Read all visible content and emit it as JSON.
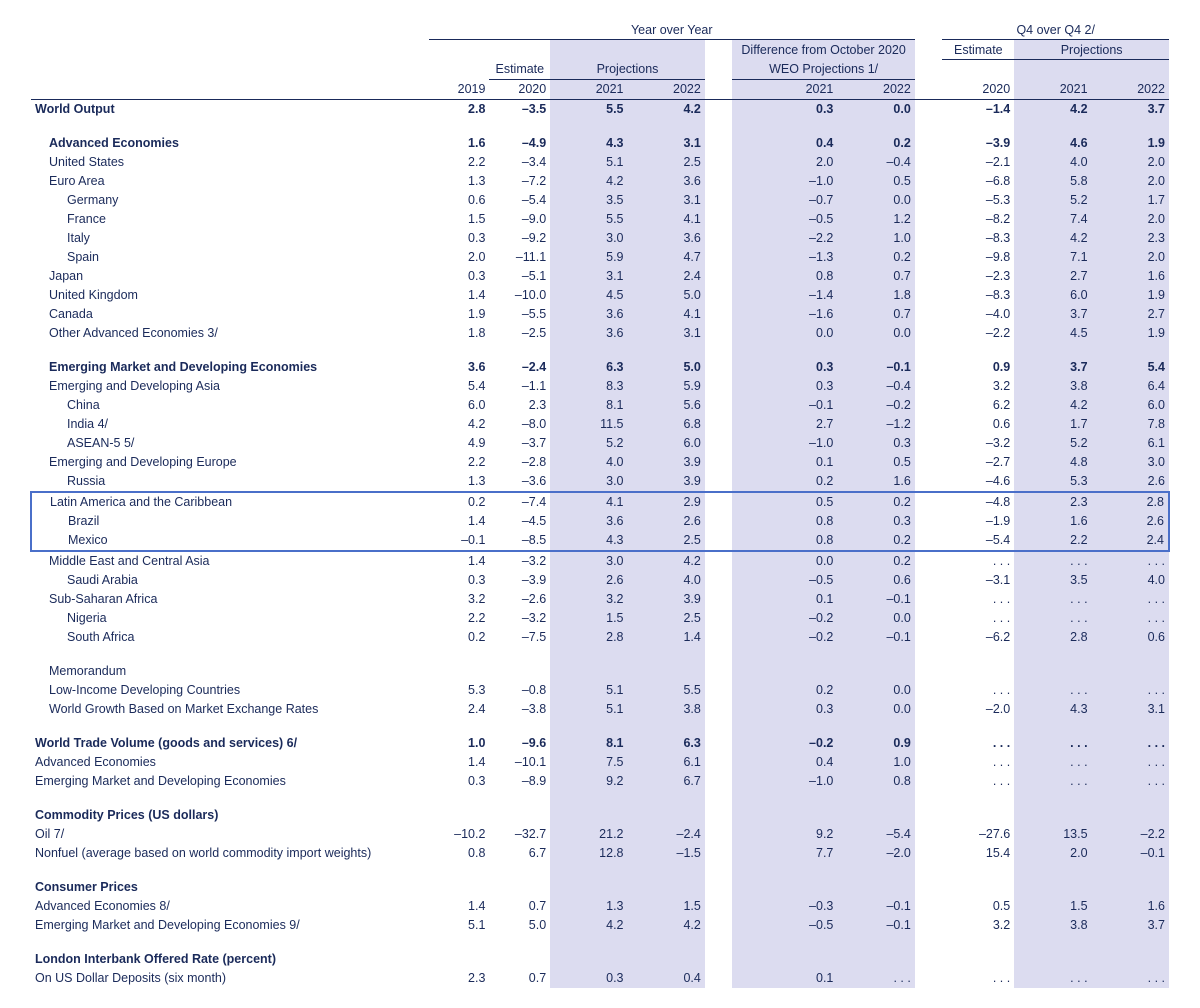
{
  "style": {
    "text_color": "#1a2a5a",
    "shade_color": "#dcdcf0",
    "highlight_border": "#4a6fc9",
    "font_family": "Arial",
    "font_size_pt": 9
  },
  "headers": {
    "yoy": "Year over Year",
    "diff": "Difference from October 2020",
    "diff2": "WEO Projections 1/",
    "q4": "Q4 over Q4 2/",
    "estimate": "Estimate",
    "projections": "Projections",
    "y2019": "2019",
    "y2020": "2020",
    "y2021": "2021",
    "y2022": "2022"
  },
  "rows": [
    {
      "label": "World Output",
      "bold": true,
      "i": 0,
      "v": [
        "2.8",
        "–3.5",
        "5.5",
        "4.2",
        "0.3",
        "0.0",
        "–1.4",
        "4.2",
        "3.7"
      ]
    },
    {
      "spacer": true
    },
    {
      "label": "Advanced Economies",
      "bold": true,
      "i": 1,
      "v": [
        "1.6",
        "–4.9",
        "4.3",
        "3.1",
        "0.4",
        "0.2",
        "–3.9",
        "4.6",
        "1.9"
      ]
    },
    {
      "label": "United States",
      "i": 1,
      "v": [
        "2.2",
        "–3.4",
        "5.1",
        "2.5",
        "2.0",
        "–0.4",
        "–2.1",
        "4.0",
        "2.0"
      ]
    },
    {
      "label": "Euro Area",
      "i": 1,
      "v": [
        "1.3",
        "–7.2",
        "4.2",
        "3.6",
        "–1.0",
        "0.5",
        "–6.8",
        "5.8",
        "2.0"
      ]
    },
    {
      "label": "Germany",
      "i": 2,
      "v": [
        "0.6",
        "–5.4",
        "3.5",
        "3.1",
        "–0.7",
        "0.0",
        "–5.3",
        "5.2",
        "1.7"
      ]
    },
    {
      "label": "France",
      "i": 2,
      "v": [
        "1.5",
        "–9.0",
        "5.5",
        "4.1",
        "–0.5",
        "1.2",
        "–8.2",
        "7.4",
        "2.0"
      ]
    },
    {
      "label": "Italy",
      "i": 2,
      "v": [
        "0.3",
        "–9.2",
        "3.0",
        "3.6",
        "–2.2",
        "1.0",
        "–8.3",
        "4.2",
        "2.3"
      ]
    },
    {
      "label": "Spain",
      "i": 2,
      "v": [
        "2.0",
        "–11.1",
        "5.9",
        "4.7",
        "–1.3",
        "0.2",
        "–9.8",
        "7.1",
        "2.0"
      ]
    },
    {
      "label": "Japan",
      "i": 1,
      "v": [
        "0.3",
        "–5.1",
        "3.1",
        "2.4",
        "0.8",
        "0.7",
        "–2.3",
        "2.7",
        "1.6"
      ]
    },
    {
      "label": "United Kingdom",
      "i": 1,
      "v": [
        "1.4",
        "–10.0",
        "4.5",
        "5.0",
        "–1.4",
        "1.8",
        "–8.3",
        "6.0",
        "1.9"
      ]
    },
    {
      "label": "Canada",
      "i": 1,
      "v": [
        "1.9",
        "–5.5",
        "3.6",
        "4.1",
        "–1.6",
        "0.7",
        "–4.0",
        "3.7",
        "2.7"
      ]
    },
    {
      "label": "Other Advanced Economies 3/",
      "i": 1,
      "v": [
        "1.8",
        "–2.5",
        "3.6",
        "3.1",
        "0.0",
        "0.0",
        "–2.2",
        "4.5",
        "1.9"
      ]
    },
    {
      "spacer": true
    },
    {
      "label": "Emerging Market and Developing Economies",
      "bold": true,
      "i": 1,
      "v": [
        "3.6",
        "–2.4",
        "6.3",
        "5.0",
        "0.3",
        "–0.1",
        "0.9",
        "3.7",
        "5.4"
      ]
    },
    {
      "label": "Emerging and Developing Asia",
      "i": 1,
      "v": [
        "5.4",
        "–1.1",
        "8.3",
        "5.9",
        "0.3",
        "–0.4",
        "3.2",
        "3.8",
        "6.4"
      ]
    },
    {
      "label": "China",
      "i": 2,
      "v": [
        "6.0",
        "2.3",
        "8.1",
        "5.6",
        "–0.1",
        "–0.2",
        "6.2",
        "4.2",
        "6.0"
      ]
    },
    {
      "label": "India 4/",
      "i": 2,
      "v": [
        "4.2",
        "–8.0",
        "11.5",
        "6.8",
        "2.7",
        "–1.2",
        "0.6",
        "1.7",
        "7.8"
      ]
    },
    {
      "label": "ASEAN-5 5/",
      "i": 2,
      "v": [
        "4.9",
        "–3.7",
        "5.2",
        "6.0",
        "–1.0",
        "0.3",
        "–3.2",
        "5.2",
        "6.1"
      ]
    },
    {
      "label": "Emerging and Developing Europe",
      "i": 1,
      "v": [
        "2.2",
        "–2.8",
        "4.0",
        "3.9",
        "0.1",
        "0.5",
        "–2.7",
        "4.8",
        "3.0"
      ]
    },
    {
      "label": "Russia",
      "i": 2,
      "v": [
        "1.3",
        "–3.6",
        "3.0",
        "3.9",
        "0.2",
        "1.6",
        "–4.6",
        "5.3",
        "2.6"
      ]
    },
    {
      "label": "Latin America and the Caribbean",
      "i": 1,
      "hl": "top",
      "v": [
        "0.2",
        "–7.4",
        "4.1",
        "2.9",
        "0.5",
        "0.2",
        "–4.8",
        "2.3",
        "2.8"
      ]
    },
    {
      "label": "Brazil",
      "i": 2,
      "hl": "mid",
      "v": [
        "1.4",
        "–4.5",
        "3.6",
        "2.6",
        "0.8",
        "0.3",
        "–1.9",
        "1.6",
        "2.6"
      ]
    },
    {
      "label": "Mexico",
      "i": 2,
      "hl": "bot",
      "v": [
        "–0.1",
        "–8.5",
        "4.3",
        "2.5",
        "0.8",
        "0.2",
        "–5.4",
        "2.2",
        "2.4"
      ]
    },
    {
      "label": "Middle East and Central Asia",
      "i": 1,
      "v": [
        "1.4",
        "–3.2",
        "3.0",
        "4.2",
        "0.0",
        "0.2",
        ". . .",
        ". . .",
        ". . ."
      ]
    },
    {
      "label": "Saudi Arabia",
      "i": 2,
      "v": [
        "0.3",
        "–3.9",
        "2.6",
        "4.0",
        "–0.5",
        "0.6",
        "–3.1",
        "3.5",
        "4.0"
      ]
    },
    {
      "label": "Sub-Saharan Africa",
      "i": 1,
      "v": [
        "3.2",
        "–2.6",
        "3.2",
        "3.9",
        "0.1",
        "–0.1",
        ". . .",
        ". . .",
        ". . ."
      ]
    },
    {
      "label": "Nigeria",
      "i": 2,
      "v": [
        "2.2",
        "–3.2",
        "1.5",
        "2.5",
        "–0.2",
        "0.0",
        ". . .",
        ". . .",
        ". . ."
      ]
    },
    {
      "label": "South Africa",
      "i": 2,
      "v": [
        "0.2",
        "–7.5",
        "2.8",
        "1.4",
        "–0.2",
        "–0.1",
        "–6.2",
        "2.8",
        "0.6"
      ]
    },
    {
      "spacer": true
    },
    {
      "label": "Memorandum",
      "i": 1,
      "v": [
        "",
        "",
        "",
        "",
        "",
        "",
        "",
        "",
        ""
      ]
    },
    {
      "label": "Low-Income Developing Countries",
      "i": 1,
      "v": [
        "5.3",
        "–0.8",
        "5.1",
        "5.5",
        "0.2",
        "0.0",
        ". . .",
        ". . .",
        ". . ."
      ]
    },
    {
      "label": "World Growth Based on Market Exchange Rates",
      "i": 1,
      "v": [
        "2.4",
        "–3.8",
        "5.1",
        "3.8",
        "0.3",
        "0.0",
        "–2.0",
        "4.3",
        "3.1"
      ]
    },
    {
      "spacer": true
    },
    {
      "label": "World Trade Volume (goods and services) 6/",
      "bold": true,
      "i": 0,
      "v": [
        "1.0",
        "–9.6",
        "8.1",
        "6.3",
        "–0.2",
        "0.9",
        ". . .",
        ". . .",
        ". . ."
      ]
    },
    {
      "label": "Advanced Economies",
      "i": 0,
      "v": [
        "1.4",
        "–10.1",
        "7.5",
        "6.1",
        "0.4",
        "1.0",
        ". . .",
        ". . .",
        ". . ."
      ]
    },
    {
      "label": "Emerging Market and Developing Economies",
      "i": 0,
      "v": [
        "0.3",
        "–8.9",
        "9.2",
        "6.7",
        "–1.0",
        "0.8",
        ". . .",
        ". . .",
        ". . ."
      ]
    },
    {
      "spacer": true
    },
    {
      "label": "Commodity Prices (US dollars)",
      "bold": true,
      "i": 0,
      "v": [
        "",
        "",
        "",
        "",
        "",
        "",
        "",
        "",
        ""
      ]
    },
    {
      "label": "Oil 7/",
      "i": 0,
      "v": [
        "–10.2",
        "–32.7",
        "21.2",
        "–2.4",
        "9.2",
        "–5.4",
        "–27.6",
        "13.5",
        "–2.2"
      ]
    },
    {
      "label": "Nonfuel (average based on world commodity import weights)",
      "i": 0,
      "v": [
        "0.8",
        "6.7",
        "12.8",
        "–1.5",
        "7.7",
        "–2.0",
        "15.4",
        "2.0",
        "–0.1"
      ]
    },
    {
      "spacer": true
    },
    {
      "label": "Consumer Prices",
      "bold": true,
      "i": 0,
      "v": [
        "",
        "",
        "",
        "",
        "",
        "",
        "",
        "",
        ""
      ]
    },
    {
      "label": "Advanced Economies 8/",
      "i": 0,
      "v": [
        "1.4",
        "0.7",
        "1.3",
        "1.5",
        "–0.3",
        "–0.1",
        "0.5",
        "1.5",
        "1.6"
      ]
    },
    {
      "label": "Emerging Market and Developing Economies 9/",
      "i": 0,
      "v": [
        "5.1",
        "5.0",
        "4.2",
        "4.2",
        "–0.5",
        "–0.1",
        "3.2",
        "3.8",
        "3.7"
      ]
    },
    {
      "spacer": true
    },
    {
      "label": "London Interbank Offered Rate (percent)",
      "bold": true,
      "i": 0,
      "v": [
        "",
        "",
        "",
        "",
        "",
        "",
        "",
        "",
        ""
      ]
    },
    {
      "label": "On US Dollar Deposits (six month)",
      "i": 0,
      "v": [
        "2.3",
        "0.7",
        "0.3",
        "0.4",
        "0.1",
        ". . .",
        ". . .",
        ". . .",
        ". . ."
      ]
    }
  ]
}
